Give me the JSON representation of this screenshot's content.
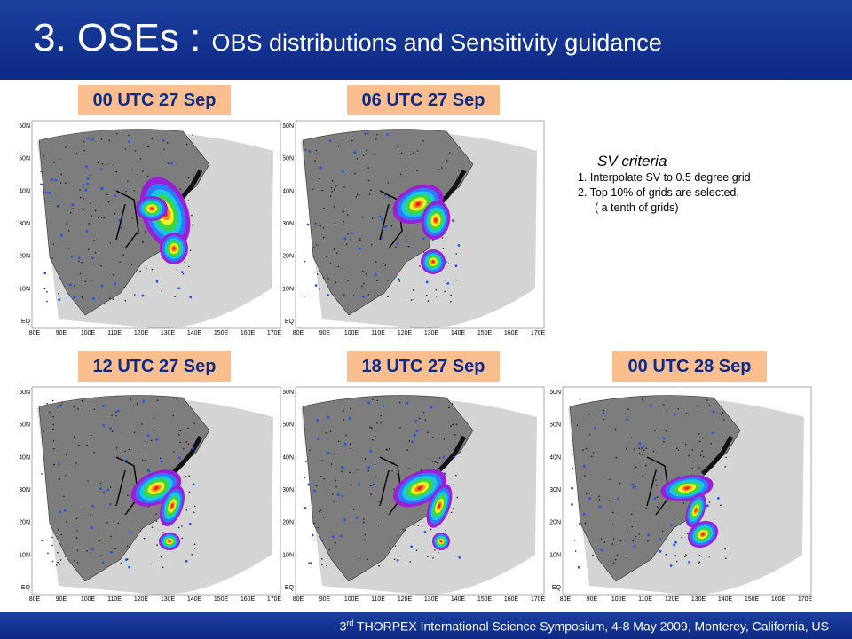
{
  "slide": {
    "title_main": "3. OSEs : ",
    "title_sub": "OBS distributions and Sensitivity guidance",
    "footer_pre": "3",
    "footer_sup": "rd",
    "footer_post": " THORPEX International Science Symposium, 4-8 May 2009, Monterey, California, US"
  },
  "sv_criteria": {
    "title": "SV criteria",
    "items": [
      "1. Interpolate SV to 0.5 degree grid",
      "2. Top 10% of grids are selected."
    ],
    "note": "( a tenth of grids)"
  },
  "panels": [
    {
      "label": "00 UTC 27 Sep"
    },
    {
      "label": "06 UTC 27 Sep"
    },
    {
      "label": "12 UTC 27 Sep"
    },
    {
      "label": "18 UTC 27 Sep"
    },
    {
      "label": "00 UTC 28 Sep"
    }
  ],
  "map_axes": {
    "lat_labels": [
      "60N",
      "50N",
      "40N",
      "30N",
      "20N",
      "10N",
      "EQ"
    ],
    "lon_labels": [
      "80E",
      "90E",
      "100E",
      "110E",
      "120E",
      "130E",
      "140E",
      "150E",
      "160E",
      "170E"
    ]
  }
}
